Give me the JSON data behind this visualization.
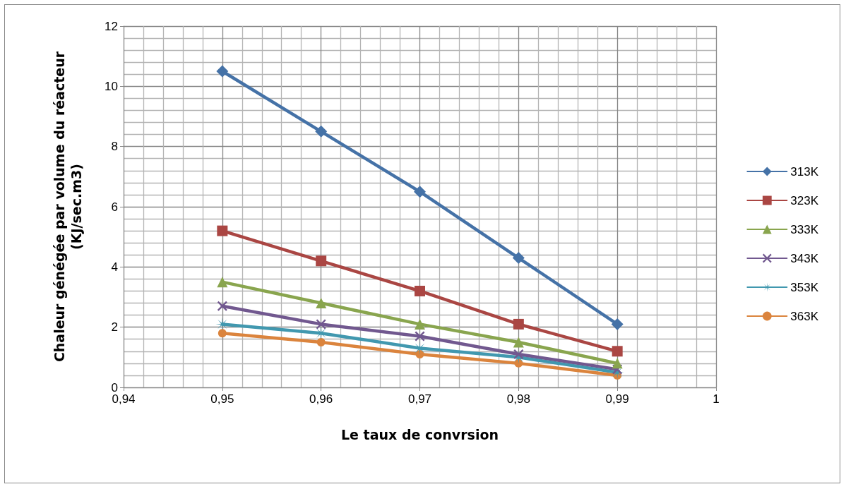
{
  "chart_data": {
    "type": "line",
    "xlabel": "Le taux de convrsion",
    "ylabel": "Chaleur génégée par volume du réacteur\n(KJ/sec.m3)",
    "x": [
      0.95,
      0.96,
      0.97,
      0.98,
      0.99
    ],
    "xlim": [
      0.94,
      1
    ],
    "xticks": [
      {
        "value": 0.94,
        "label": "0,94"
      },
      {
        "value": 0.95,
        "label": "0,95"
      },
      {
        "value": 0.96,
        "label": "0,96"
      },
      {
        "value": 0.97,
        "label": "0,97"
      },
      {
        "value": 0.98,
        "label": "0,98"
      },
      {
        "value": 0.99,
        "label": "0,99"
      },
      {
        "value": 1,
        "label": "1"
      }
    ],
    "ylim": [
      0,
      12
    ],
    "yticks": [
      0,
      2,
      4,
      6,
      8,
      10,
      12
    ],
    "grid": true,
    "legend": "right",
    "line_style": "solid",
    "series": [
      {
        "name": "313K",
        "color": "#4572a7",
        "marker": "diamond",
        "values": [
          10.5,
          8.5,
          6.5,
          4.3,
          2.1
        ]
      },
      {
        "name": "323K",
        "color": "#aa4643",
        "marker": "square",
        "values": [
          5.2,
          4.2,
          3.2,
          2.1,
          1.2
        ]
      },
      {
        "name": "333K",
        "color": "#89a54e",
        "marker": "triangle",
        "values": [
          3.5,
          2.8,
          2.1,
          1.5,
          0.8
        ]
      },
      {
        "name": "343K",
        "color": "#71588f",
        "marker": "cross",
        "values": [
          2.7,
          2.1,
          1.7,
          1.1,
          0.6
        ]
      },
      {
        "name": "353K",
        "color": "#4198af",
        "marker": "star",
        "values": [
          2.1,
          1.8,
          1.3,
          1.0,
          0.5
        ]
      },
      {
        "name": "363K",
        "color": "#db843d",
        "marker": "circle",
        "values": [
          1.8,
          1.5,
          1.1,
          0.8,
          0.4
        ]
      }
    ]
  }
}
